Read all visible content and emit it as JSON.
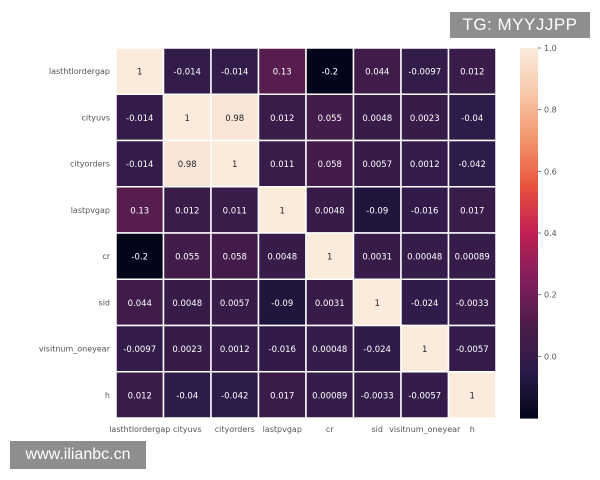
{
  "watermarks": {
    "top": "TG: MYYJJPP",
    "bottom": "www.ilianbc.cn"
  },
  "chart_data": {
    "type": "heatmap",
    "title": "",
    "xlabel": "",
    "ylabel": "",
    "labels": [
      "lasthtlordergap",
      "cityuvs",
      "cityorders",
      "lastpvgap",
      "cr",
      "sid",
      "visitnum_oneyear",
      "h"
    ],
    "matrix": [
      [
        1,
        -0.014,
        -0.014,
        0.13,
        -0.2,
        0.044,
        -0.0097,
        0.012
      ],
      [
        -0.014,
        1,
        0.98,
        0.012,
        0.055,
        0.0048,
        0.0023,
        -0.04
      ],
      [
        -0.014,
        0.98,
        1,
        0.011,
        0.058,
        0.0057,
        0.0012,
        -0.042
      ],
      [
        0.13,
        0.012,
        0.011,
        1,
        0.0048,
        -0.09,
        -0.016,
        0.017
      ],
      [
        -0.2,
        0.055,
        0.058,
        0.0048,
        1,
        0.0031,
        0.00048,
        0.00089
      ],
      [
        0.044,
        0.0048,
        0.0057,
        -0.09,
        0.0031,
        1,
        -0.024,
        -0.0033
      ],
      [
        -0.0097,
        0.0023,
        0.0012,
        -0.016,
        0.00048,
        -0.024,
        1,
        -0.0057
      ],
      [
        0.012,
        -0.04,
        -0.042,
        0.017,
        0.00089,
        -0.0033,
        -0.0057,
        1
      ]
    ],
    "cell_labels": [
      [
        "1",
        "-0.014",
        "-0.014",
        "0.13",
        "-0.2",
        "0.044",
        "-0.0097",
        "0.012"
      ],
      [
        "-0.014",
        "1",
        "0.98",
        "0.012",
        "0.055",
        "0.0048",
        "0.0023",
        "-0.04"
      ],
      [
        "-0.014",
        "0.98",
        "1",
        "0.011",
        "0.058",
        "0.0057",
        "0.0012",
        "-0.042"
      ],
      [
        "0.13",
        "0.012",
        "0.011",
        "1",
        "0.0048",
        "-0.09",
        "-0.016",
        "0.017"
      ],
      [
        "-0.2",
        "0.055",
        "0.058",
        "0.0048",
        "1",
        "0.0031",
        "0.00048",
        "0.00089"
      ],
      [
        "0.044",
        "0.0048",
        "0.0057",
        "-0.09",
        "0.0031",
        "1",
        "-0.024",
        "-0.0033"
      ],
      [
        "-0.0097",
        "0.0023",
        "0.0012",
        "-0.016",
        "0.00048",
        "-0.024",
        "1",
        "-0.0057"
      ],
      [
        "0.012",
        "-0.04",
        "-0.042",
        "0.017",
        "0.00089",
        "-0.0033",
        "-0.0057",
        "1"
      ]
    ],
    "colorbar": {
      "range": [
        -0.2,
        1.0
      ],
      "ticks": [
        0.0,
        0.2,
        0.4,
        0.6,
        0.8,
        1.0
      ],
      "tick_labels": [
        "0.0",
        "0.2",
        "0.4",
        "0.6",
        "0.8",
        "1.0"
      ]
    },
    "colormap_stops": [
      "#03051a",
      "#2b1b4a",
      "#4c1d4b",
      "#811f5c",
      "#bf1f53",
      "#e8533f",
      "#f3956b",
      "#f7c7a8",
      "#faebdd"
    ],
    "legend": "right"
  }
}
